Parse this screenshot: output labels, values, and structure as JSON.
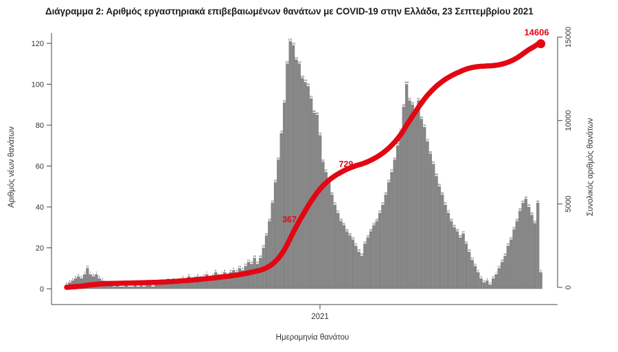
{
  "title": "Διάγραμμα 2: Αριθμός εργαστηριακά επιβεβαιωμένων θανάτων με COVID-19 στην Ελλάδα, 23 Σεπτεμβρίου 2021",
  "chart_data": {
    "type": "bar",
    "subtype": "daily-bars-with-cumulative-line",
    "title": "Διάγραμμα 2: Αριθμός εργαστηριακά επιβεβαιωμένων θανάτων με COVID-19 στην Ελλάδα, 23 Σεπτεμβρίου 2021",
    "xlabel": "Ημερομηνία θανάτου",
    "ylabel_left": "Αριθμός νέων θανάτων",
    "ylabel_right": "Συνολικός αριθμός θανάτων",
    "x_tick_labels": [
      "2021"
    ],
    "left_ticks": [
      0,
      20,
      40,
      60,
      80,
      100,
      120
    ],
    "right_ticks": [
      0,
      5000,
      10000,
      15000
    ],
    "ylim_left": [
      0,
      125
    ],
    "ylim_right": [
      0,
      15000
    ],
    "grid": false,
    "legend": "none",
    "bar_color": "#868686",
    "bar_edge_color": "#5a5a5a",
    "line_color": "#e30613",
    "bar_value_labels_visible": true,
    "series": [
      {
        "name": "daily_deaths",
        "type": "bar",
        "note": "laboratory-confirmed COVID-19 deaths per period, Mar 2020 - 23 Sep 2021 (left axis), peaks: 121 (Nov-Dec 2020), 100 (Apr 2021), 44 (Aug-Sep 2021)",
        "values": [
          2,
          3,
          4,
          5,
          6,
          5,
          7,
          10,
          7,
          6,
          7,
          5,
          4,
          3,
          2,
          2,
          1,
          2,
          1,
          1,
          2,
          1,
          1,
          2,
          1,
          2,
          1,
          2,
          2,
          1,
          2,
          3,
          2,
          3,
          4,
          3,
          4,
          3,
          4,
          5,
          4,
          6,
          4,
          5,
          6,
          5,
          6,
          7,
          5,
          6,
          8,
          6,
          7,
          8,
          6,
          8,
          9,
          8,
          10,
          9,
          11,
          13,
          12,
          15,
          12,
          15,
          20,
          26,
          33,
          42,
          52,
          63,
          76,
          91,
          110,
          121,
          119,
          112,
          110,
          103,
          101,
          99,
          93,
          86,
          85,
          75,
          62,
          57,
          53,
          46,
          41,
          37,
          33,
          31,
          28,
          26,
          24,
          21,
          18,
          16,
          22,
          25,
          28,
          31,
          33,
          37,
          41,
          46,
          52,
          57,
          63,
          70,
          77,
          89,
          100,
          92,
          90,
          86,
          92,
          83,
          79,
          72,
          66,
          61,
          55,
          50,
          46,
          41,
          37,
          33,
          30,
          28,
          25,
          27,
          22,
          18,
          14,
          11,
          8,
          5,
          3,
          4,
          2,
          5,
          7,
          10,
          13,
          16,
          21,
          24,
          29,
          33,
          38,
          42,
          44,
          40,
          36,
          32,
          42,
          8
        ]
      },
      {
        "name": "cumulative_deaths",
        "type": "line",
        "derived": "cumulative of daily_deaths, normalized to final total",
        "final_value": 14606
      }
    ],
    "annotations": [
      {
        "text": "367",
        "value": 3670
      },
      {
        "text": "729",
        "value": 7290
      },
      {
        "text": "14606",
        "value": 14606,
        "endpoint": true
      }
    ]
  }
}
